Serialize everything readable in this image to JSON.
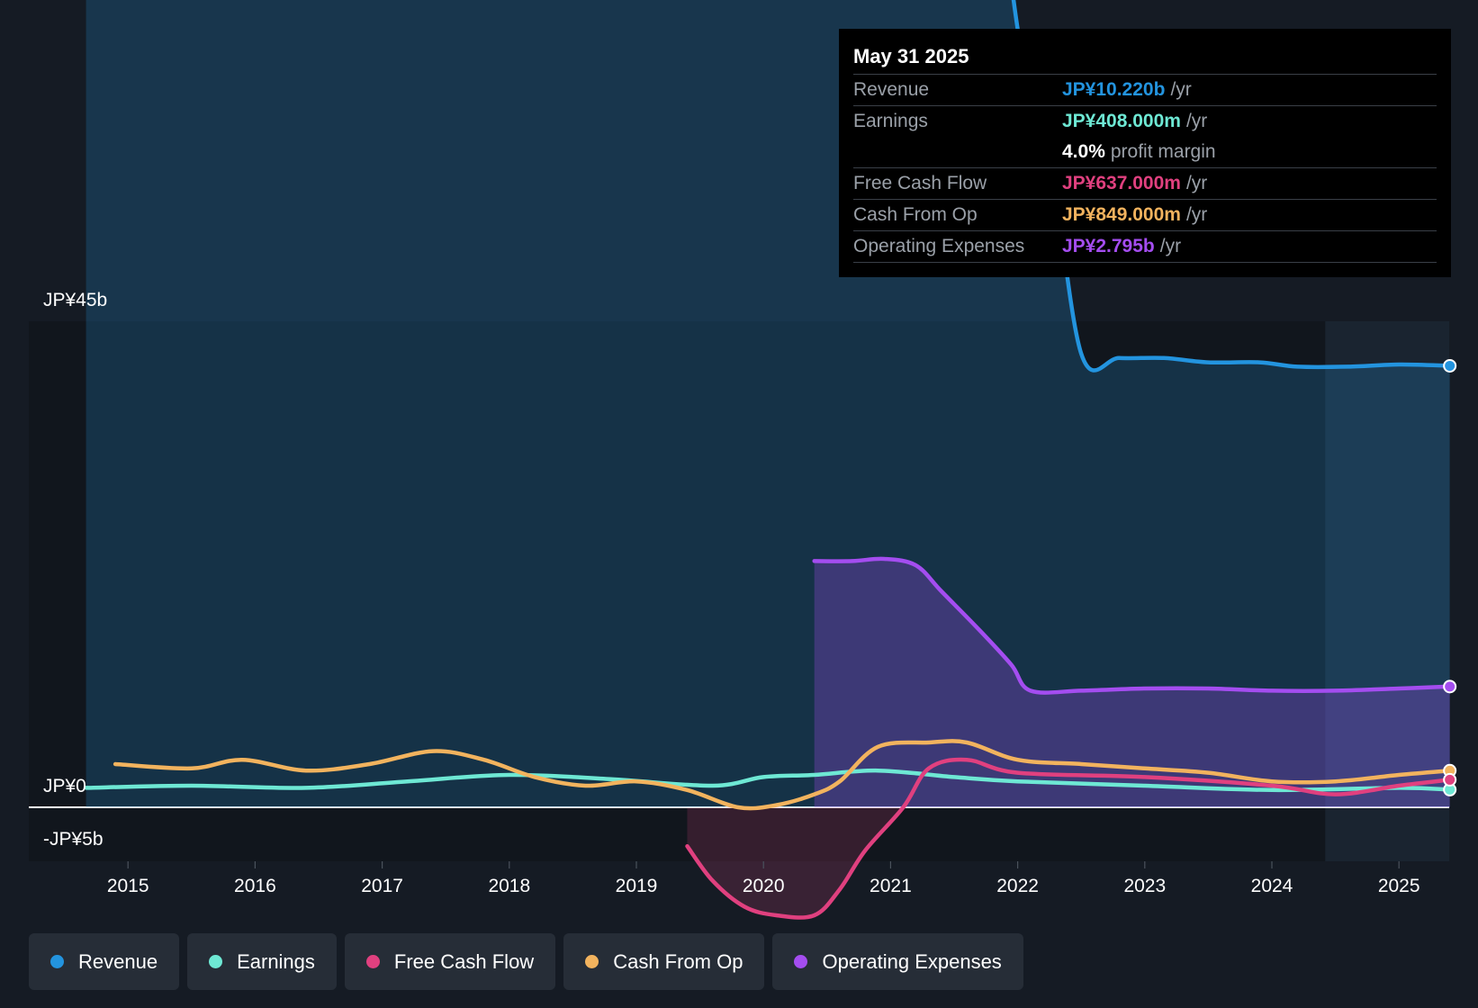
{
  "tooltip": {
    "date": "May 31 2025",
    "rows": [
      {
        "label": "Revenue",
        "value": "JP¥10.220b",
        "unit": "/yr",
        "color": "#2394df"
      },
      {
        "label": "Earnings",
        "value": "JP¥408.000m",
        "unit": "/yr",
        "color": "#6ee8d4"
      },
      {
        "label": "",
        "value": "4.0%",
        "unit": "profit margin",
        "color": "#ffffff"
      },
      {
        "label": "Free Cash Flow",
        "value": "JP¥637.000m",
        "unit": "/yr",
        "color": "#e0407f"
      },
      {
        "label": "Cash From Op",
        "value": "JP¥849.000m",
        "unit": "/yr",
        "color": "#f2b35e"
      },
      {
        "label": "Operating Expenses",
        "value": "JP¥2.795b",
        "unit": "/yr",
        "color": "#a44df0"
      }
    ]
  },
  "legend": [
    {
      "label": "Revenue",
      "color": "#2394df"
    },
    {
      "label": "Earnings",
      "color": "#6ee8d4"
    },
    {
      "label": "Free Cash Flow",
      "color": "#e0407f"
    },
    {
      "label": "Cash From Op",
      "color": "#f2b35e"
    },
    {
      "label": "Operating Expenses",
      "color": "#a44df0"
    }
  ],
  "chart_data": {
    "type": "line",
    "y_axis_labels": [
      "JP¥45b",
      "JP¥0",
      "-JP¥5b"
    ],
    "ylim": [
      -5,
      45
    ],
    "x_ticks": [
      2015,
      2016,
      2017,
      2018,
      2019,
      2020,
      2021,
      2022,
      2023,
      2024,
      2025
    ],
    "xlim": [
      2014.2,
      2025.4
    ],
    "forecast_start": 2024.42,
    "series": [
      {
        "name": "Revenue",
        "color": "#2394df",
        "fill": true,
        "x": [
          2014.67,
          2014.85,
          2015.0,
          2015.2,
          2015.4,
          2015.65,
          2015.9,
          2016.15,
          2016.4,
          2016.65,
          2016.9,
          2017.2,
          2017.5,
          2017.75,
          2018.0,
          2018.2,
          2018.45,
          2018.7,
          2018.95,
          2019.2,
          2019.4,
          2019.6,
          2019.85,
          2020.1,
          2020.25,
          2020.35,
          2020.55,
          2020.8,
          2021.05,
          2021.15,
          2021.25,
          2021.4,
          2021.65,
          2021.95,
          2022.1,
          2022.25,
          2022.5,
          2022.8,
          2023.15,
          2023.5,
          2023.9,
          2024.2,
          2024.6,
          2025.0,
          2025.4
        ],
        "values": [
          40.9,
          40.7,
          40.7,
          40.5,
          40.4,
          40.5,
          40.3,
          40.8,
          41.3,
          41.6,
          41.8,
          41.9,
          42.0,
          42.2,
          42.2,
          42.0,
          41.9,
          42.0,
          42.3,
          42.5,
          42.4,
          42.1,
          41.9,
          41.9,
          42.4,
          42.6,
          42.6,
          42.5,
          42.1,
          40.3,
          37.5,
          33.5,
          27.2,
          19.1,
          16.6,
          15.3,
          10.5,
          10.4,
          10.4,
          10.3,
          10.3,
          10.2,
          10.2,
          10.25,
          10.22
        ]
      },
      {
        "name": "Earnings",
        "color": "#6ee8d4",
        "x": [
          2014.67,
          2015.5,
          2016.4,
          2017.2,
          2018.0,
          2018.8,
          2019.6,
          2020.0,
          2020.4,
          2020.9,
          2021.5,
          2022.0,
          2023.0,
          2024.0,
          2025.0,
          2025.4
        ],
        "values": [
          0.45,
          0.5,
          0.45,
          0.6,
          0.75,
          0.65,
          0.5,
          0.7,
          0.75,
          0.85,
          0.7,
          0.6,
          0.5,
          0.4,
          0.45,
          0.408
        ]
      },
      {
        "name": "Free Cash Flow",
        "color": "#e0407f",
        "x": [
          2019.4,
          2019.6,
          2019.85,
          2020.1,
          2020.4,
          2020.6,
          2020.8,
          2021.1,
          2021.3,
          2021.6,
          2022.0,
          2023.0,
          2024.0,
          2024.5,
          2025.0,
          2025.4
        ],
        "values": [
          -0.9,
          -1.7,
          -2.3,
          -2.5,
          -2.5,
          -1.9,
          -1.0,
          0.0,
          0.9,
          1.1,
          0.8,
          0.7,
          0.5,
          0.3,
          0.5,
          0.637
        ]
      },
      {
        "name": "Cash From Op",
        "color": "#f2b35e",
        "x": [
          2014.9,
          2015.5,
          2015.9,
          2016.4,
          2016.9,
          2017.4,
          2017.8,
          2018.2,
          2018.6,
          2019.0,
          2019.4,
          2019.8,
          2020.1,
          2020.4,
          2020.6,
          2020.9,
          2021.3,
          2021.6,
          2022.0,
          2022.5,
          2023.0,
          2023.5,
          2024.0,
          2024.5,
          2025.0,
          2025.4
        ],
        "values": [
          1.0,
          0.9,
          1.1,
          0.85,
          1.0,
          1.3,
          1.1,
          0.7,
          0.5,
          0.6,
          0.4,
          0.0,
          0.05,
          0.3,
          0.6,
          1.4,
          1.5,
          1.5,
          1.1,
          1.0,
          0.9,
          0.8,
          0.6,
          0.6,
          0.75,
          0.849
        ]
      },
      {
        "name": "Operating Expenses",
        "color": "#a44df0",
        "fill": true,
        "x": [
          2020.4,
          2020.7,
          2020.95,
          2021.2,
          2021.4,
          2021.7,
          2021.95,
          2022.1,
          2022.5,
          2023.0,
          2023.5,
          2024.0,
          2024.5,
          2025.0,
          2025.4
        ],
        "values": [
          5.7,
          5.7,
          5.75,
          5.6,
          5.0,
          4.1,
          3.3,
          2.7,
          2.7,
          2.75,
          2.75,
          2.7,
          2.7,
          2.75,
          2.795
        ]
      }
    ]
  }
}
